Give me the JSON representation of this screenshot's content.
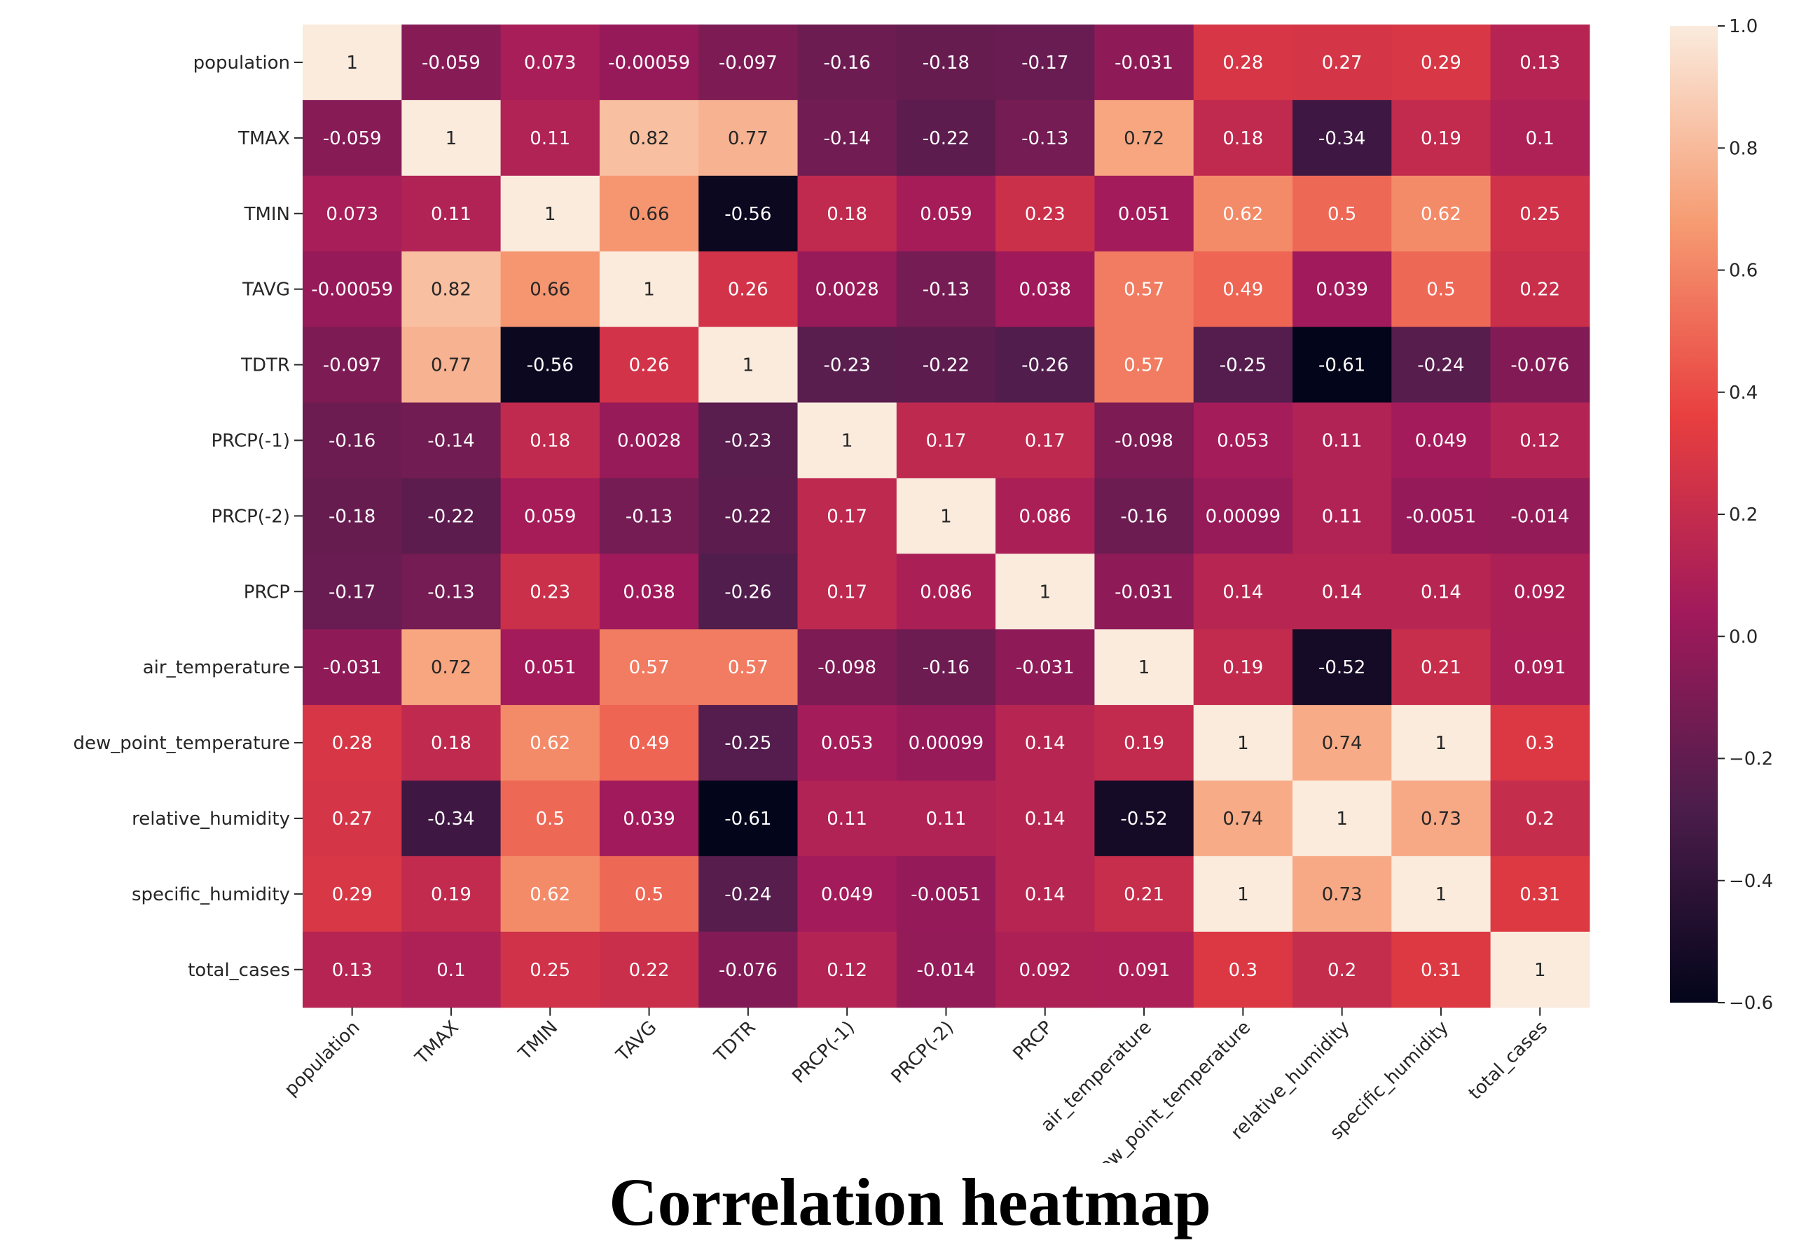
{
  "caption": "Correlation heatmap",
  "chart_data": {
    "type": "heatmap",
    "title": "",
    "xlabel": "",
    "ylabel": "",
    "variables": [
      "population",
      "TMAX",
      "TMIN",
      "TAVG",
      "TDTR",
      "PRCP(-1)",
      "PRCP(-2)",
      "PRCP",
      "air_temperature",
      "dew_point_temperature",
      "relative_humidity",
      "specific_humidity",
      "total_cases"
    ],
    "value_labels": [
      [
        "1",
        "-0.059",
        "0.073",
        "-0.00059",
        "-0.097",
        "-0.16",
        "-0.18",
        "-0.17",
        "-0.031",
        "0.28",
        "0.27",
        "0.29",
        "0.13"
      ],
      [
        "-0.059",
        "1",
        "0.11",
        "0.82",
        "0.77",
        "-0.14",
        "-0.22",
        "-0.13",
        "0.72",
        "0.18",
        "-0.34",
        "0.19",
        "0.1"
      ],
      [
        "0.073",
        "0.11",
        "1",
        "0.66",
        "-0.56",
        "0.18",
        "0.059",
        "0.23",
        "0.051",
        "0.62",
        "0.5",
        "0.62",
        "0.25"
      ],
      [
        "-0.00059",
        "0.82",
        "0.66",
        "1",
        "0.26",
        "0.0028",
        "-0.13",
        "0.038",
        "0.57",
        "0.49",
        "0.039",
        "0.5",
        "0.22"
      ],
      [
        "-0.097",
        "0.77",
        "-0.56",
        "0.26",
        "1",
        "-0.23",
        "-0.22",
        "-0.26",
        "0.57",
        "-0.25",
        "-0.61",
        "-0.24",
        "-0.076"
      ],
      [
        "-0.16",
        "-0.14",
        "0.18",
        "0.0028",
        "-0.23",
        "1",
        "0.17",
        "0.17",
        "-0.098",
        "0.053",
        "0.11",
        "0.049",
        "0.12"
      ],
      [
        "-0.18",
        "-0.22",
        "0.059",
        "-0.13",
        "-0.22",
        "0.17",
        "1",
        "0.086",
        "-0.16",
        "0.00099",
        "0.11",
        "-0.0051",
        "-0.014"
      ],
      [
        "-0.17",
        "-0.13",
        "0.23",
        "0.038",
        "-0.26",
        "0.17",
        "0.086",
        "1",
        "-0.031",
        "0.14",
        "0.14",
        "0.14",
        "0.092"
      ],
      [
        "-0.031",
        "0.72",
        "0.051",
        "0.57",
        "0.57",
        "-0.098",
        "-0.16",
        "-0.031",
        "1",
        "0.19",
        "-0.52",
        "0.21",
        "0.091"
      ],
      [
        "0.28",
        "0.18",
        "0.62",
        "0.49",
        "-0.25",
        "0.053",
        "0.00099",
        "0.14",
        "0.19",
        "1",
        "0.74",
        "1",
        "0.3"
      ],
      [
        "0.27",
        "-0.34",
        "0.5",
        "0.039",
        "-0.61",
        "0.11",
        "0.11",
        "0.14",
        "-0.52",
        "0.74",
        "1",
        "0.73",
        "0.2"
      ],
      [
        "0.29",
        "0.19",
        "0.62",
        "0.5",
        "-0.24",
        "0.049",
        "-0.0051",
        "0.14",
        "0.21",
        "1",
        "0.73",
        "1",
        "0.31"
      ],
      [
        "0.13",
        "0.1",
        "0.25",
        "0.22",
        "-0.076",
        "0.12",
        "-0.014",
        "0.092",
        "0.091",
        "0.3",
        "0.2",
        "0.31",
        "1"
      ]
    ],
    "colorbar": {
      "range": [
        -0.6,
        1.0
      ],
      "ticks": [
        1.0,
        0.8,
        0.6,
        0.4,
        0.2,
        0.0,
        -0.2,
        -0.4,
        -0.6
      ],
      "tick_labels": [
        "1.0",
        "0.8",
        "0.6",
        "0.4",
        "0.2",
        "0.0",
        "−0.2",
        "−0.4",
        "−0.6"
      ],
      "colormap": "rocket",
      "color_stops": [
        "#03051a",
        "#4c1d4b",
        "#a11a5b",
        "#e83f3f",
        "#f69c73",
        "#faebdd"
      ]
    },
    "grid": false,
    "legend": "colorbar-right"
  }
}
